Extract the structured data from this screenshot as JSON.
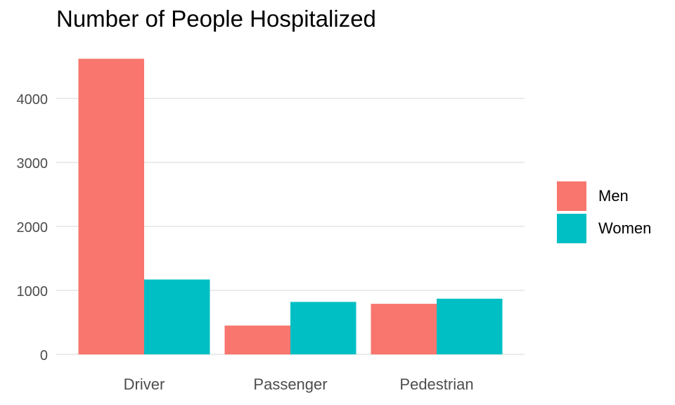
{
  "chart_data": {
    "type": "bar",
    "title": "Number of People Hospitalized",
    "xlabel": "",
    "ylabel": "",
    "categories": [
      "Driver",
      "Passenger",
      "Pedestrian"
    ],
    "series": [
      {
        "name": "Men",
        "values": [
          4620,
          450,
          790
        ],
        "color": "#F8766D"
      },
      {
        "name": "Women",
        "values": [
          1170,
          820,
          870
        ],
        "color": "#00BFC4"
      }
    ],
    "ylim": [
      0,
      4620
    ],
    "yticks": [
      0,
      1000,
      2000,
      3000,
      4000
    ],
    "grid": true,
    "legend_position": "right"
  }
}
